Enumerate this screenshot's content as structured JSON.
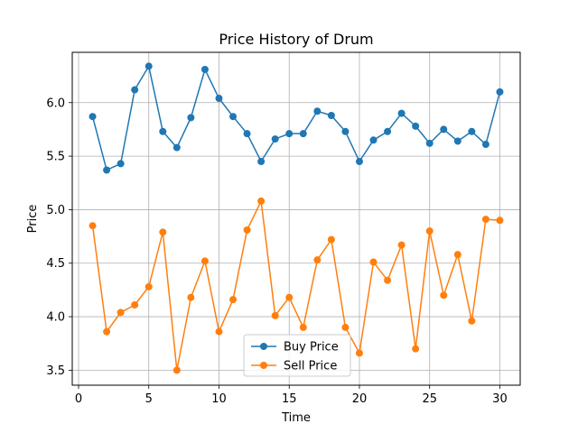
{
  "chart_data": {
    "type": "line",
    "title": "Price History of Drum",
    "xlabel": "Time",
    "ylabel": "Price",
    "xlim": [
      -0.45,
      31.45
    ],
    "ylim": [
      3.36,
      6.47
    ],
    "xticks": [
      0,
      5,
      10,
      15,
      20,
      25,
      30
    ],
    "xtick_labels": [
      "0",
      "5",
      "10",
      "15",
      "20",
      "25",
      "30"
    ],
    "yticks": [
      3.5,
      4.0,
      4.5,
      5.0,
      5.5,
      6.0
    ],
    "ytick_labels": [
      "3.5",
      "4.0",
      "4.5",
      "5.0",
      "5.5",
      "6.0"
    ],
    "grid": true,
    "legend_position": "lower-center",
    "x": [
      1,
      2,
      3,
      4,
      5,
      6,
      7,
      8,
      9,
      10,
      11,
      12,
      13,
      14,
      15,
      16,
      17,
      18,
      19,
      20,
      21,
      22,
      23,
      24,
      25,
      26,
      27,
      28,
      29,
      30
    ],
    "series": [
      {
        "name": "Buy Price",
        "color": "#1f77b4",
        "marker": "circle",
        "values": [
          5.87,
          5.37,
          5.43,
          6.12,
          6.34,
          5.73,
          5.58,
          5.86,
          6.31,
          6.04,
          5.87,
          5.71,
          5.45,
          5.66,
          5.71,
          5.71,
          5.92,
          5.88,
          5.73,
          5.45,
          5.65,
          5.73,
          5.9,
          5.78,
          5.62,
          5.75,
          5.64,
          5.73,
          5.61,
          6.1
        ]
      },
      {
        "name": "Sell Price",
        "color": "#ff7f0e",
        "marker": "circle",
        "values": [
          4.85,
          3.86,
          4.04,
          4.11,
          4.28,
          4.79,
          3.5,
          4.18,
          4.52,
          3.86,
          4.16,
          4.81,
          5.08,
          4.01,
          4.18,
          3.9,
          4.53,
          4.72,
          3.9,
          3.66,
          4.51,
          4.34,
          4.67,
          3.7,
          4.8,
          4.2,
          4.58,
          3.96,
          4.91,
          4.9
        ]
      }
    ]
  }
}
